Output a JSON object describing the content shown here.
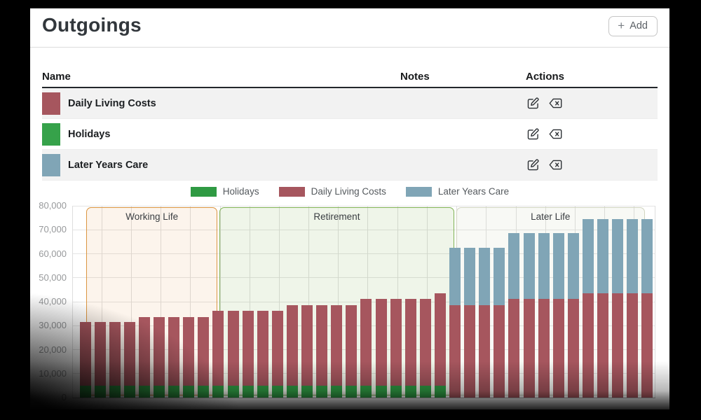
{
  "header": {
    "title": "Outgoings",
    "add_label": "Add",
    "add_icon": "plus-icon"
  },
  "table": {
    "columns": [
      "Name",
      "Notes",
      "Actions"
    ],
    "rows": [
      {
        "name": "Daily Living Costs",
        "color": "#a6565e",
        "notes": ""
      },
      {
        "name": "Holidays",
        "color": "#36a24a",
        "notes": ""
      },
      {
        "name": "Later Years Care",
        "color": "#80a5b6",
        "notes": ""
      }
    ],
    "row_actions": [
      "edit",
      "delete"
    ]
  },
  "chart_data": {
    "type": "bar",
    "stacked": true,
    "bars_count": 39,
    "ylim": [
      0,
      80000
    ],
    "ytick_step": 10000,
    "yticks": [
      "0",
      "10,000",
      "20,000",
      "30,000",
      "40,000",
      "50,000",
      "60,000",
      "70,000",
      "80,000"
    ],
    "x_tick_labels_visible": false,
    "grid": true,
    "legend_position": "top",
    "series": [
      {
        "name": "Holidays",
        "color": "#2f9a43",
        "values": [
          4900,
          4900,
          4900,
          4900,
          4900,
          4900,
          4900,
          4900,
          4900,
          4900,
          4900,
          4900,
          4900,
          4900,
          4900,
          4900,
          4900,
          4900,
          4900,
          4900,
          4900,
          4900,
          4900,
          4900,
          4900,
          0,
          0,
          0,
          0,
          0,
          0,
          0,
          0,
          0,
          0,
          0,
          0,
          0,
          0
        ]
      },
      {
        "name": "Daily Living Costs",
        "color": "#a6565e",
        "values": [
          26500,
          26500,
          26500,
          26500,
          28800,
          28800,
          28800,
          28800,
          28800,
          31300,
          31300,
          31300,
          31300,
          31300,
          33700,
          33700,
          33700,
          33700,
          33700,
          36200,
          36200,
          36200,
          36200,
          36200,
          38500,
          38500,
          38500,
          38500,
          38500,
          41100,
          41100,
          41100,
          41100,
          41100,
          43400,
          43400,
          43400,
          43400,
          43400
        ]
      },
      {
        "name": "Later Years Care",
        "color": "#80a5b6",
        "values": [
          0,
          0,
          0,
          0,
          0,
          0,
          0,
          0,
          0,
          0,
          0,
          0,
          0,
          0,
          0,
          0,
          0,
          0,
          0,
          0,
          0,
          0,
          0,
          0,
          0,
          23900,
          23900,
          23900,
          23900,
          27400,
          27400,
          27400,
          27400,
          27400,
          31000,
          31000,
          31000,
          31000,
          31000
        ]
      }
    ],
    "phases": [
      {
        "label": "Working Life",
        "start_bar": 1,
        "end_bar": 9,
        "border": "#db9540",
        "fill": "rgba(224,150,68,0.10)"
      },
      {
        "label": "Retirement",
        "start_bar": 10,
        "end_bar": 25,
        "border": "#80b254",
        "fill": "rgba(133,178,88,0.13)"
      },
      {
        "label": "Later Life",
        "start_bar": 26,
        "end_bar": 39,
        "border": "#d2d5c0",
        "fill": "rgba(205,210,185,0.14)"
      }
    ]
  }
}
